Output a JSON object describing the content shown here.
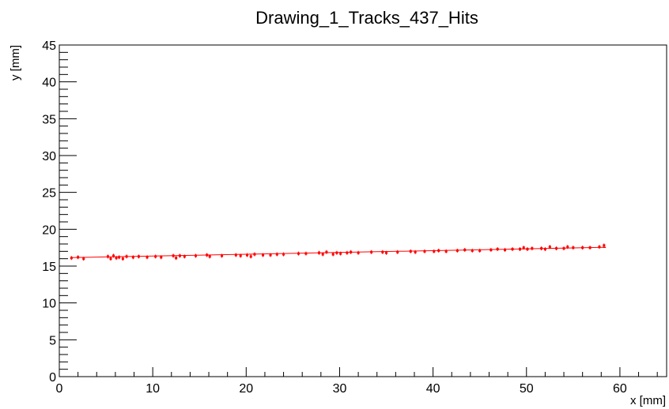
{
  "chart_data": {
    "type": "scatter",
    "title": "Drawing_1_Tracks_437_Hits",
    "xlabel": "x [mm]",
    "ylabel": "y [mm]",
    "xlim": [
      0,
      65
    ],
    "ylim": [
      0,
      45
    ],
    "x_ticks": [
      0,
      10,
      20,
      30,
      40,
      50,
      60
    ],
    "y_ticks": [
      0,
      5,
      10,
      15,
      20,
      25,
      30,
      35,
      40,
      45
    ],
    "grid": false,
    "legend": "none",
    "color": "#ff0000",
    "fit_line": {
      "x": [
        1.3,
        58.5
      ],
      "y": [
        16.15,
        17.55
      ]
    },
    "series": [
      {
        "x": [
          1.3,
          2.0,
          2.6,
          5.2,
          5.5,
          5.8,
          6.1,
          6.4,
          6.8,
          7.2,
          7.9,
          8.5,
          9.4,
          10.3,
          10.9,
          12.2,
          12.5,
          12.9,
          13.4,
          14.6,
          15.8,
          16.1,
          17.4,
          18.9,
          19.4,
          20.1,
          20.5,
          20.9,
          21.8,
          22.6,
          23.3,
          24.0,
          25.6,
          26.4,
          27.8,
          28.2,
          28.6,
          29.3,
          29.7,
          30.1,
          30.8,
          31.2,
          32.0,
          33.4,
          34.6,
          35.0,
          36.2,
          37.6,
          38.1,
          39.1,
          40.1,
          40.6,
          41.4,
          42.6,
          43.4,
          44.2,
          45.0,
          46.2,
          46.9,
          47.7,
          48.5,
          49.3,
          49.7,
          50.1,
          50.6,
          51.6,
          52.0,
          52.5,
          53.2,
          54.0,
          54.4,
          55.0,
          56.0,
          56.8,
          57.8,
          58.3
        ],
        "y": [
          16.1,
          16.2,
          16.0,
          16.3,
          16.0,
          16.4,
          16.1,
          16.2,
          16.0,
          16.3,
          16.2,
          16.3,
          16.2,
          16.3,
          16.2,
          16.4,
          16.1,
          16.4,
          16.3,
          16.4,
          16.5,
          16.3,
          16.4,
          16.5,
          16.4,
          16.5,
          16.3,
          16.6,
          16.5,
          16.5,
          16.6,
          16.6,
          16.7,
          16.7,
          16.8,
          16.6,
          16.9,
          16.6,
          16.8,
          16.7,
          16.8,
          16.9,
          16.8,
          16.9,
          16.9,
          16.8,
          16.9,
          17.0,
          16.9,
          17.0,
          17.0,
          17.1,
          17.0,
          17.1,
          17.2,
          17.1,
          17.1,
          17.2,
          17.3,
          17.2,
          17.3,
          17.3,
          17.5,
          17.3,
          17.4,
          17.4,
          17.3,
          17.6,
          17.4,
          17.4,
          17.6,
          17.5,
          17.5,
          17.5,
          17.6,
          17.8
        ]
      }
    ]
  }
}
